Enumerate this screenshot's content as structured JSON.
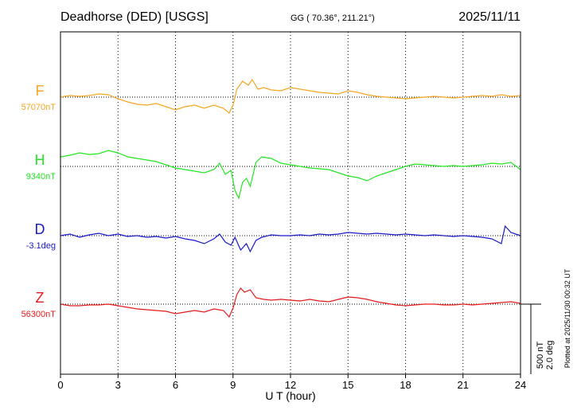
{
  "header": {
    "station": "Deadhorse (DED)  [USGS]",
    "coords": "GG ( 70.36°, 211.21°)",
    "date": "2025/11/11"
  },
  "footer_note": "Plotted at 2025/11/30 00:32 UT",
  "scale_bar": {
    "line1": "500 nT",
    "line2": "2.0 deg"
  },
  "chart_data": {
    "type": "line",
    "xlabel": "U T (hour)",
    "xlim": [
      0,
      24
    ],
    "xticks": [
      0,
      3,
      6,
      9,
      12,
      15,
      18,
      21,
      24
    ],
    "grid": true,
    "series": [
      {
        "name": "F",
        "baseline_label": "57070nT",
        "color": "#f5a623",
        "values_offset": [
          [
            0,
            0
          ],
          [
            0.5,
            2
          ],
          [
            1,
            1
          ],
          [
            1.5,
            2
          ],
          [
            2,
            4
          ],
          [
            2.5,
            3
          ],
          [
            3,
            -2
          ],
          [
            3.5,
            -6
          ],
          [
            4,
            -9
          ],
          [
            4.5,
            -10
          ],
          [
            5,
            -8
          ],
          [
            5.5,
            -12
          ],
          [
            6,
            -16
          ],
          [
            6.5,
            -12
          ],
          [
            7,
            -10
          ],
          [
            7.5,
            -14
          ],
          [
            8,
            -10
          ],
          [
            8.5,
            -14
          ],
          [
            8.8,
            -20
          ],
          [
            9,
            -10
          ],
          [
            9.2,
            10
          ],
          [
            9.5,
            20
          ],
          [
            9.8,
            15
          ],
          [
            10,
            22
          ],
          [
            10.3,
            10
          ],
          [
            10.6,
            12
          ],
          [
            11,
            9
          ],
          [
            11.5,
            8
          ],
          [
            12,
            12
          ],
          [
            12.5,
            10
          ],
          [
            13,
            8
          ],
          [
            13.5,
            6
          ],
          [
            14,
            5
          ],
          [
            14.5,
            4
          ],
          [
            15,
            8
          ],
          [
            15.5,
            6
          ],
          [
            16,
            3
          ],
          [
            16.5,
            1
          ],
          [
            17,
            0
          ],
          [
            17.5,
            -1
          ],
          [
            18,
            -2
          ],
          [
            18.5,
            -1
          ],
          [
            19,
            0
          ],
          [
            19.5,
            1
          ],
          [
            20,
            0
          ],
          [
            20.5,
            -1
          ],
          [
            21,
            0
          ],
          [
            21.5,
            1
          ],
          [
            22,
            2
          ],
          [
            22.5,
            1
          ],
          [
            23,
            3
          ],
          [
            23.5,
            1
          ],
          [
            24,
            2
          ]
        ]
      },
      {
        "name": "H",
        "baseline_label": "9340nT",
        "color": "#22e622",
        "values_offset": [
          [
            0,
            12
          ],
          [
            0.5,
            14
          ],
          [
            1,
            17
          ],
          [
            1.5,
            15
          ],
          [
            2,
            16
          ],
          [
            2.5,
            20
          ],
          [
            3,
            17
          ],
          [
            3.5,
            12
          ],
          [
            4,
            10
          ],
          [
            4.5,
            8
          ],
          [
            5,
            6
          ],
          [
            5.5,
            2
          ],
          [
            6,
            -2
          ],
          [
            6.5,
            -4
          ],
          [
            7,
            -6
          ],
          [
            7.5,
            -8
          ],
          [
            8,
            -4
          ],
          [
            8.3,
            4
          ],
          [
            8.6,
            -10
          ],
          [
            8.9,
            -5
          ],
          [
            9.1,
            -30
          ],
          [
            9.3,
            -40
          ],
          [
            9.5,
            -20
          ],
          [
            9.7,
            -15
          ],
          [
            9.9,
            -25
          ],
          [
            10.2,
            5
          ],
          [
            10.5,
            12
          ],
          [
            11,
            10
          ],
          [
            11.5,
            4
          ],
          [
            12,
            2
          ],
          [
            12.5,
            0
          ],
          [
            13,
            -2
          ],
          [
            13.5,
            -3
          ],
          [
            14,
            -4
          ],
          [
            14.5,
            -8
          ],
          [
            15,
            -12
          ],
          [
            15.5,
            -14
          ],
          [
            16,
            -18
          ],
          [
            16.5,
            -12
          ],
          [
            17,
            -8
          ],
          [
            17.5,
            -4
          ],
          [
            18,
            0
          ],
          [
            18.5,
            3
          ],
          [
            19,
            2
          ],
          [
            19.5,
            1
          ],
          [
            20,
            0
          ],
          [
            20.5,
            1
          ],
          [
            21,
            0
          ],
          [
            21.5,
            1
          ],
          [
            22,
            2
          ],
          [
            22.5,
            4
          ],
          [
            23,
            3
          ],
          [
            23.5,
            5
          ],
          [
            24,
            -4
          ]
        ]
      },
      {
        "name": "D",
        "baseline_label": "-3.1deg",
        "color": "#1a1acc",
        "values_offset": [
          [
            0,
            0
          ],
          [
            0.5,
            2
          ],
          [
            1,
            -2
          ],
          [
            1.5,
            1
          ],
          [
            2,
            3
          ],
          [
            2.5,
            0
          ],
          [
            3,
            2
          ],
          [
            3.5,
            -1
          ],
          [
            4,
            0
          ],
          [
            4.5,
            -2
          ],
          [
            5,
            -1
          ],
          [
            5.5,
            -3
          ],
          [
            6,
            -1
          ],
          [
            6.5,
            -4
          ],
          [
            7,
            -6
          ],
          [
            7.5,
            -10
          ],
          [
            8,
            -4
          ],
          [
            8.3,
            2
          ],
          [
            8.6,
            -8
          ],
          [
            8.9,
            -12
          ],
          [
            9.1,
            -2
          ],
          [
            9.4,
            -18
          ],
          [
            9.7,
            -10
          ],
          [
            9.9,
            -20
          ],
          [
            10.2,
            -6
          ],
          [
            10.5,
            -2
          ],
          [
            11,
            1
          ],
          [
            11.5,
            0
          ],
          [
            12,
            0
          ],
          [
            12.5,
            1
          ],
          [
            13,
            0
          ],
          [
            13.5,
            2
          ],
          [
            14,
            1
          ],
          [
            14.5,
            2
          ],
          [
            15,
            4
          ],
          [
            15.5,
            3
          ],
          [
            16,
            2
          ],
          [
            16.5,
            3
          ],
          [
            17,
            2
          ],
          [
            17.5,
            1
          ],
          [
            18,
            2
          ],
          [
            18.5,
            1
          ],
          [
            19,
            0
          ],
          [
            19.5,
            1
          ],
          [
            20,
            0
          ],
          [
            20.5,
            -1
          ],
          [
            21,
            0
          ],
          [
            21.5,
            -1
          ],
          [
            22,
            -2
          ],
          [
            22.5,
            -4
          ],
          [
            23,
            -10
          ],
          [
            23.2,
            12
          ],
          [
            23.5,
            4
          ],
          [
            24,
            0
          ]
        ]
      },
      {
        "name": "Z",
        "baseline_label": "56300nT",
        "color": "#e61a1a",
        "values_offset": [
          [
            0,
            0
          ],
          [
            0.5,
            -2
          ],
          [
            1,
            -2
          ],
          [
            1.5,
            -1
          ],
          [
            2,
            -1
          ],
          [
            2.5,
            0
          ],
          [
            3,
            -2
          ],
          [
            3.5,
            -4
          ],
          [
            4,
            -6
          ],
          [
            4.5,
            -7
          ],
          [
            5,
            -8
          ],
          [
            5.5,
            -9
          ],
          [
            6,
            -12
          ],
          [
            6.5,
            -10
          ],
          [
            7,
            -8
          ],
          [
            7.5,
            -10
          ],
          [
            8,
            -6
          ],
          [
            8.5,
            -8
          ],
          [
            8.8,
            -16
          ],
          [
            9,
            -5
          ],
          [
            9.2,
            12
          ],
          [
            9.4,
            20
          ],
          [
            9.6,
            15
          ],
          [
            9.9,
            18
          ],
          [
            10.2,
            8
          ],
          [
            10.6,
            6
          ],
          [
            11,
            5
          ],
          [
            11.5,
            6
          ],
          [
            12,
            5
          ],
          [
            12.5,
            4
          ],
          [
            13,
            6
          ],
          [
            13.5,
            4
          ],
          [
            14,
            3
          ],
          [
            14.5,
            6
          ],
          [
            15,
            9
          ],
          [
            15.5,
            8
          ],
          [
            16,
            6
          ],
          [
            16.5,
            3
          ],
          [
            17,
            1
          ],
          [
            17.5,
            -1
          ],
          [
            18,
            -2
          ],
          [
            18.5,
            -1
          ],
          [
            19,
            0
          ],
          [
            19.5,
            0
          ],
          [
            20,
            -1
          ],
          [
            20.5,
            -1
          ],
          [
            21,
            0
          ],
          [
            21.5,
            -1
          ],
          [
            22,
            0
          ],
          [
            22.5,
            1
          ],
          [
            23,
            2
          ],
          [
            23.5,
            3
          ],
          [
            24,
            1
          ]
        ]
      }
    ]
  }
}
